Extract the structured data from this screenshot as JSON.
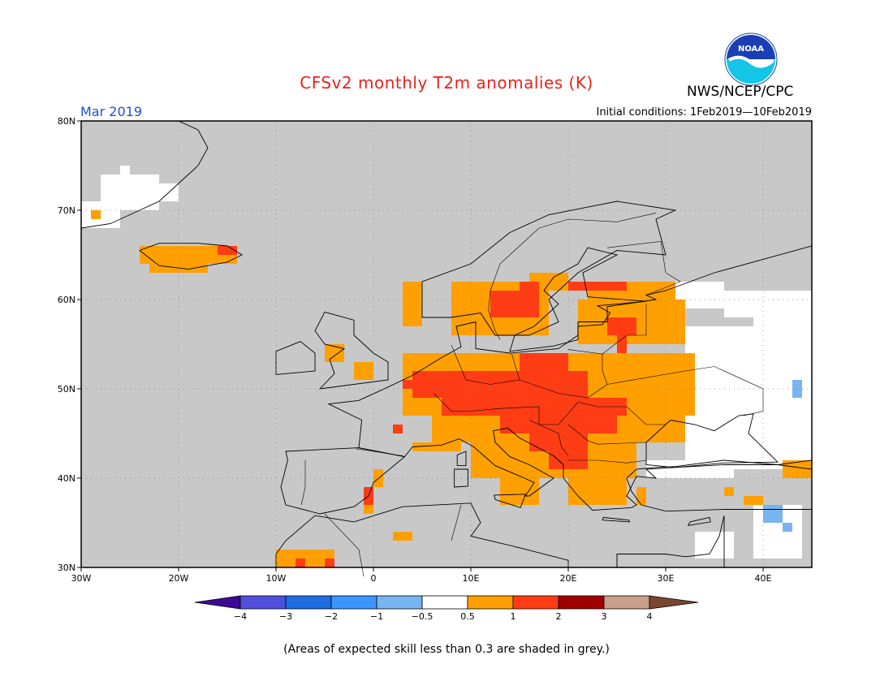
{
  "header": {
    "title": "CFSv2 monthly T2m anomalies (K)",
    "month": "Mar 2019",
    "initial_conditions": "Initial conditions: 1Feb2019—10Feb2019",
    "agency": "NWS/NCEP/CPC",
    "logo_text": "NOAA"
  },
  "map": {
    "lat_ticks": [
      "80N",
      "70N",
      "60N",
      "50N",
      "40N",
      "30N"
    ],
    "lon_ticks": [
      "30W",
      "20W",
      "10W",
      "0",
      "10E",
      "20E",
      "30E",
      "40E"
    ],
    "lon_range": [
      -30,
      45
    ],
    "lat_range": [
      30,
      80
    ],
    "colors": {
      "skill_mask": "#c8c8c8",
      "ocean_skill": "#c8c8c8",
      "neutral": "#ffffff",
      "anom_0_5_1": "#ffa000",
      "anom_1_2": "#ff3c14",
      "anom_neg_0_5": "#78b4f0"
    }
  },
  "legend": {
    "tick_labels": [
      "−4",
      "−3",
      "−2",
      "−1",
      "−0.5",
      "0.5",
      "1",
      "2",
      "3",
      "4"
    ],
    "colors": [
      "#3c0a96",
      "#5050dc",
      "#1e6ee1",
      "#3c96ff",
      "#78b4f0",
      "#ffffff",
      "#ffa000",
      "#ff3c14",
      "#a00000",
      "#c8a08c",
      "#7a4632"
    ]
  },
  "footnote": "(Areas of expected skill less than 0.3 are shaded in grey.)"
}
